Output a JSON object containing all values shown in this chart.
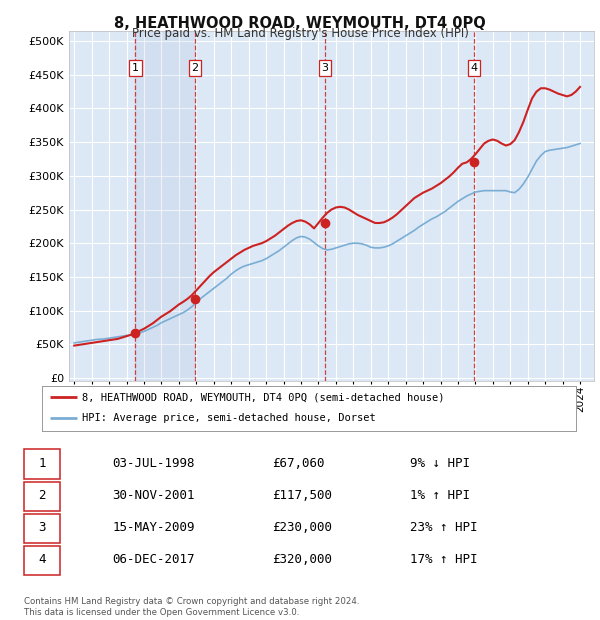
{
  "title": "8, HEATHWOOD ROAD, WEYMOUTH, DT4 0PQ",
  "subtitle": "Price paid vs. HM Land Registry's House Price Index (HPI)",
  "ytick_values": [
    0,
    50000,
    100000,
    150000,
    200000,
    250000,
    300000,
    350000,
    400000,
    450000,
    500000
  ],
  "xlim": [
    1994.7,
    2024.8
  ],
  "ylim": [
    -5000,
    515000
  ],
  "sale_dates": [
    1998.5,
    2001.92,
    2009.37,
    2017.92
  ],
  "sale_prices": [
    67060,
    117500,
    230000,
    320000
  ],
  "sale_labels": [
    "1",
    "2",
    "3",
    "4"
  ],
  "hpi_line_color": "#7aadd4",
  "price_line_color": "#cc2222",
  "sale_dot_color": "#cc2222",
  "sale_vline_color": "#cc2222",
  "background_color": "#ffffff",
  "chart_bg_color": "#dce8f5",
  "grid_color": "#ffffff",
  "legend_label_price": "8, HEATHWOOD ROAD, WEYMOUTH, DT4 0PQ (semi-detached house)",
  "legend_label_hpi": "HPI: Average price, semi-detached house, Dorset",
  "table_rows": [
    [
      "1",
      "03-JUL-1998",
      "£67,060",
      "9% ↓ HPI"
    ],
    [
      "2",
      "30-NOV-2001",
      "£117,500",
      "1% ↑ HPI"
    ],
    [
      "3",
      "15-MAY-2009",
      "£230,000",
      "23% ↑ HPI"
    ],
    [
      "4",
      "06-DEC-2017",
      "£320,000",
      "17% ↑ HPI"
    ]
  ],
  "footer_text": "Contains HM Land Registry data © Crown copyright and database right 2024.\nThis data is licensed under the Open Government Licence v3.0.",
  "hpi_years": [
    1995,
    1995.25,
    1995.5,
    1995.75,
    1996,
    1996.25,
    1996.5,
    1996.75,
    1997,
    1997.25,
    1997.5,
    1997.75,
    1998,
    1998.25,
    1998.5,
    1998.75,
    1999,
    1999.25,
    1999.5,
    1999.75,
    2000,
    2000.25,
    2000.5,
    2000.75,
    2001,
    2001.25,
    2001.5,
    2001.75,
    2002,
    2002.25,
    2002.5,
    2002.75,
    2003,
    2003.25,
    2003.5,
    2003.75,
    2004,
    2004.25,
    2004.5,
    2004.75,
    2005,
    2005.25,
    2005.5,
    2005.75,
    2006,
    2006.25,
    2006.5,
    2006.75,
    2007,
    2007.25,
    2007.5,
    2007.75,
    2008,
    2008.25,
    2008.5,
    2008.75,
    2009,
    2009.25,
    2009.5,
    2009.75,
    2010,
    2010.25,
    2010.5,
    2010.75,
    2011,
    2011.25,
    2011.5,
    2011.75,
    2012,
    2012.25,
    2012.5,
    2012.75,
    2013,
    2013.25,
    2013.5,
    2013.75,
    2014,
    2014.25,
    2014.5,
    2014.75,
    2015,
    2015.25,
    2015.5,
    2015.75,
    2016,
    2016.25,
    2016.5,
    2016.75,
    2017,
    2017.25,
    2017.5,
    2017.75,
    2018,
    2018.25,
    2018.5,
    2018.75,
    2019,
    2019.25,
    2019.5,
    2019.75,
    2020,
    2020.25,
    2020.5,
    2020.75,
    2021,
    2021.25,
    2021.5,
    2021.75,
    2022,
    2022.25,
    2022.5,
    2022.75,
    2023,
    2023.25,
    2023.5,
    2023.75,
    2024
  ],
  "hpi_values": [
    52000,
    53000,
    54000,
    55000,
    56000,
    57000,
    57500,
    58000,
    59000,
    60000,
    61000,
    62000,
    63000,
    64000,
    65000,
    67000,
    69000,
    72000,
    75000,
    78000,
    82000,
    85000,
    88000,
    91000,
    94000,
    97000,
    101000,
    106000,
    112000,
    118000,
    123000,
    128000,
    133000,
    138000,
    143000,
    148000,
    154000,
    159000,
    163000,
    166000,
    168000,
    170000,
    172000,
    174000,
    177000,
    181000,
    185000,
    189000,
    194000,
    199000,
    204000,
    208000,
    210000,
    209000,
    206000,
    201000,
    196000,
    192000,
    190000,
    191000,
    193000,
    195000,
    197000,
    199000,
    200000,
    200000,
    199000,
    197000,
    194000,
    193000,
    193000,
    194000,
    196000,
    199000,
    203000,
    207000,
    211000,
    215000,
    219000,
    224000,
    228000,
    232000,
    236000,
    239000,
    243000,
    247000,
    252000,
    257000,
    262000,
    266000,
    270000,
    273000,
    276000,
    277000,
    278000,
    278000,
    278000,
    278000,
    278000,
    278000,
    276000,
    275000,
    280000,
    288000,
    298000,
    310000,
    322000,
    330000,
    336000,
    338000,
    339000,
    340000,
    341000,
    342000,
    344000,
    346000,
    348000
  ],
  "price_years": [
    1995,
    1995.25,
    1995.5,
    1995.75,
    1996,
    1996.25,
    1996.5,
    1996.75,
    1997,
    1997.25,
    1997.5,
    1997.75,
    1998,
    1998.25,
    1998.5,
    1998.75,
    1999,
    1999.25,
    1999.5,
    1999.75,
    2000,
    2000.25,
    2000.5,
    2000.75,
    2001,
    2001.25,
    2001.5,
    2001.75,
    2002,
    2002.25,
    2002.5,
    2002.75,
    2003,
    2003.25,
    2003.5,
    2003.75,
    2004,
    2004.25,
    2004.5,
    2004.75,
    2005,
    2005.25,
    2005.5,
    2005.75,
    2006,
    2006.25,
    2006.5,
    2006.75,
    2007,
    2007.25,
    2007.5,
    2007.75,
    2008,
    2008.25,
    2008.5,
    2008.75,
    2009,
    2009.25,
    2009.5,
    2009.75,
    2010,
    2010.25,
    2010.5,
    2010.75,
    2011,
    2011.25,
    2011.5,
    2011.75,
    2012,
    2012.25,
    2012.5,
    2012.75,
    2013,
    2013.25,
    2013.5,
    2013.75,
    2014,
    2014.25,
    2014.5,
    2014.75,
    2015,
    2015.25,
    2015.5,
    2015.75,
    2016,
    2016.25,
    2016.5,
    2016.75,
    2017,
    2017.25,
    2017.5,
    2017.75,
    2018,
    2018.25,
    2018.5,
    2018.75,
    2019,
    2019.25,
    2019.5,
    2019.75,
    2020,
    2020.25,
    2020.5,
    2020.75,
    2021,
    2021.25,
    2021.5,
    2021.75,
    2022,
    2022.25,
    2022.5,
    2022.75,
    2023,
    2023.25,
    2023.5,
    2023.75,
    2024
  ],
  "price_values": [
    48000,
    49000,
    50000,
    51000,
    52000,
    53000,
    54000,
    55000,
    56000,
    57000,
    58000,
    60000,
    62000,
    64000,
    67060,
    70000,
    73000,
    77000,
    81000,
    86000,
    91000,
    95000,
    99000,
    104000,
    109000,
    113000,
    117500,
    123000,
    130000,
    137000,
    144000,
    151000,
    157000,
    162000,
    167000,
    172000,
    177000,
    182000,
    186000,
    190000,
    193000,
    196000,
    198000,
    200000,
    203000,
    207000,
    211000,
    216000,
    221000,
    226000,
    230000,
    233000,
    234000,
    232000,
    228000,
    222000,
    230000,
    238000,
    245000,
    250000,
    253000,
    254000,
    253000,
    250000,
    246000,
    242000,
    239000,
    236000,
    233000,
    230000,
    230000,
    231000,
    234000,
    238000,
    243000,
    249000,
    255000,
    261000,
    267000,
    271000,
    275000,
    278000,
    281000,
    285000,
    289000,
    294000,
    299000,
    305000,
    312000,
    318000,
    320000,
    325000,
    332000,
    340000,
    348000,
    352000,
    354000,
    352000,
    348000,
    345000,
    347000,
    353000,
    365000,
    380000,
    398000,
    415000,
    425000,
    430000,
    430000,
    428000,
    425000,
    422000,
    420000,
    418000,
    420000,
    425000,
    432000
  ]
}
